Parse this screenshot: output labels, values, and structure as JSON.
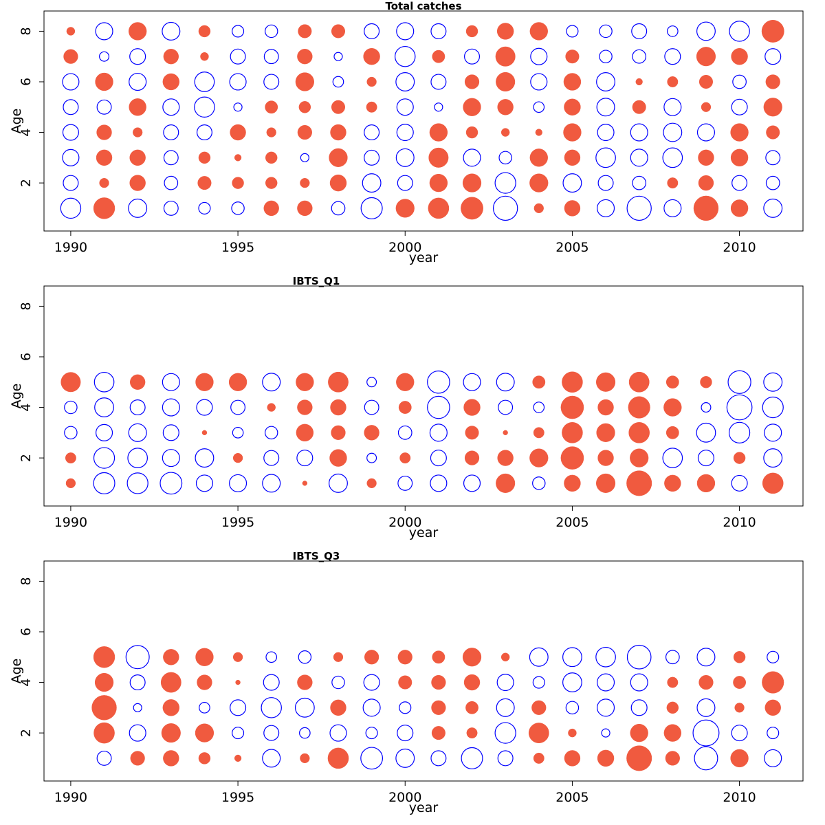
{
  "chart_data": [
    {
      "type": "scatter",
      "subtype": "bubble",
      "title": "Total catches",
      "xlabel": "year",
      "ylabel": "Age",
      "xlim": [
        1989.2,
        2011.9
      ],
      "ylim": [
        0.1,
        8.8
      ],
      "xticks": [
        1990,
        1995,
        2000,
        2005,
        2010
      ],
      "yticks": [
        2,
        4,
        6,
        8
      ],
      "grid": false,
      "colors": {
        "positive": "#f05a3f",
        "negative": "#0000ff"
      },
      "years": [
        1990,
        1991,
        1992,
        1993,
        1994,
        1995,
        1996,
        1997,
        1998,
        1999,
        2000,
        2001,
        2002,
        2003,
        2004,
        2005,
        2006,
        2007,
        2008,
        2009,
        2010,
        2011
      ],
      "ages": [
        1,
        2,
        3,
        4,
        5,
        6,
        7,
        8
      ],
      "values": [
        [
          -0.9,
          1.0,
          -0.75,
          -0.45,
          -0.3,
          -0.35,
          0.5,
          0.5,
          -0.4,
          -1.0,
          0.75,
          0.95,
          1.1,
          -1.3,
          0.2,
          0.55,
          -0.65,
          -1.3,
          -0.65,
          1.35,
          0.65,
          -0.75
        ],
        [
          -0.5,
          0.2,
          0.55,
          -0.4,
          0.4,
          0.3,
          0.3,
          0.2,
          0.6,
          -0.75,
          -0.5,
          0.7,
          0.75,
          -0.95,
          0.75,
          -0.75,
          -0.5,
          -0.4,
          0.25,
          0.5,
          -0.5,
          -0.4
        ],
        [
          -0.6,
          0.55,
          0.55,
          -0.45,
          0.3,
          0.1,
          0.3,
          -0.15,
          0.75,
          -0.5,
          -0.7,
          0.85,
          -0.65,
          -0.35,
          0.7,
          0.55,
          -0.85,
          -0.65,
          -0.85,
          0.55,
          0.65,
          -0.45
        ],
        [
          -0.55,
          0.5,
          0.2,
          -0.5,
          -0.5,
          0.55,
          0.2,
          0.45,
          0.55,
          -0.5,
          -0.6,
          0.7,
          0.3,
          0.15,
          0.1,
          0.7,
          -0.6,
          -0.65,
          -0.75,
          -0.65,
          0.7,
          0.4
        ],
        [
          -0.5,
          -0.45,
          0.65,
          -0.6,
          -0.9,
          -0.15,
          0.35,
          0.3,
          0.4,
          0.25,
          -0.6,
          -0.15,
          0.7,
          0.55,
          -0.25,
          0.6,
          -0.7,
          0.4,
          -0.65,
          0.2,
          -0.55,
          0.75
        ],
        [
          -0.6,
          0.7,
          -0.65,
          0.6,
          -0.85,
          -0.6,
          -0.5,
          0.75,
          -0.25,
          0.2,
          -0.75,
          -0.5,
          0.45,
          0.8,
          -0.6,
          0.65,
          -0.75,
          0.1,
          0.25,
          0.4,
          -0.4,
          0.45
        ],
        [
          0.45,
          -0.2,
          -0.55,
          0.5,
          0.15,
          -0.5,
          -0.45,
          0.5,
          -0.15,
          0.6,
          -0.9,
          0.35,
          -0.5,
          0.85,
          -0.6,
          0.4,
          -0.35,
          -0.4,
          -0.55,
          0.8,
          0.6,
          -0.55
        ],
        [
          0.15,
          -0.65,
          0.7,
          -0.7,
          0.3,
          -0.3,
          -0.35,
          0.4,
          0.4,
          -0.5,
          -0.65,
          -0.5,
          0.3,
          0.6,
          0.7,
          -0.3,
          -0.35,
          -0.5,
          -0.25,
          -0.75,
          -0.9,
          1.1
        ]
      ]
    },
    {
      "type": "scatter",
      "subtype": "bubble",
      "title": "IBTS_Q1",
      "xlabel": "year",
      "ylabel": "Age",
      "xlim": [
        1989.2,
        2011.9
      ],
      "ylim": [
        0.1,
        8.8
      ],
      "xticks": [
        1990,
        1995,
        2000,
        2005,
        2010
      ],
      "yticks": [
        2,
        4,
        6,
        8
      ],
      "grid": false,
      "colors": {
        "positive": "#f05a3f",
        "negative": "#0000ff"
      },
      "years": [
        1990,
        1991,
        1992,
        1993,
        1994,
        1995,
        1996,
        1997,
        1998,
        1999,
        2000,
        2001,
        2002,
        2003,
        2004,
        2005,
        2006,
        2007,
        2008,
        2009,
        2010,
        2011
      ],
      "ages": [
        1,
        2,
        3,
        4,
        5
      ],
      "values": [
        [
          0.2,
          -1.0,
          -0.95,
          -1.05,
          -0.6,
          -0.65,
          -0.7,
          0.05,
          -0.75,
          0.2,
          -0.45,
          -0.6,
          -0.6,
          0.8,
          -0.35,
          0.6,
          0.8,
          1.4,
          0.6,
          0.7,
          -0.55,
          0.95
        ],
        [
          0.25,
          -0.95,
          -0.85,
          -0.65,
          -0.75,
          0.2,
          -0.5,
          -0.55,
          0.65,
          -0.2,
          0.25,
          -0.55,
          0.45,
          0.55,
          0.75,
          1.15,
          0.55,
          0.75,
          -0.85,
          -0.55,
          0.3,
          -0.75
        ],
        [
          -0.35,
          -0.6,
          -0.7,
          -0.55,
          0.05,
          -0.25,
          -0.35,
          0.65,
          0.45,
          0.5,
          -0.4,
          -0.65,
          0.4,
          0.05,
          0.25,
          0.95,
          0.75,
          0.95,
          0.35,
          -0.8,
          -0.95,
          -0.65
        ],
        [
          -0.35,
          -0.8,
          -0.5,
          -0.65,
          -0.55,
          -0.45,
          0.15,
          0.5,
          0.55,
          -0.45,
          0.35,
          -1.1,
          0.6,
          -0.45,
          -0.25,
          1.15,
          0.55,
          1.05,
          0.7,
          -0.2,
          -1.4,
          -0.95
        ],
        [
          0.85,
          -0.85,
          0.5,
          -0.65,
          0.7,
          0.7,
          -0.7,
          0.7,
          0.9,
          -0.2,
          0.7,
          -1.1,
          -0.65,
          -0.7,
          0.35,
          0.95,
          0.8,
          0.9,
          0.35,
          0.3,
          -1.15,
          -0.75
        ]
      ]
    },
    {
      "type": "scatter",
      "subtype": "bubble",
      "title": "IBTS_Q3",
      "xlabel": "year",
      "ylabel": "Age",
      "xlim": [
        1989.2,
        2011.9
      ],
      "ylim": [
        0.1,
        8.8
      ],
      "xticks": [
        1990,
        1995,
        2000,
        2005,
        2010
      ],
      "yticks": [
        2,
        4,
        6,
        8
      ],
      "grid": false,
      "colors": {
        "positive": "#f05a3f",
        "negative": "#0000ff"
      },
      "years": [
        1991,
        1992,
        1993,
        1994,
        1995,
        1996,
        1997,
        1998,
        1999,
        2000,
        2001,
        2002,
        2003,
        2004,
        2005,
        2006,
        2007,
        2008,
        2009,
        2010,
        2011
      ],
      "ages": [
        1,
        2,
        3,
        4,
        5
      ],
      "values": [
        [
          -0.45,
          0.45,
          0.55,
          0.3,
          0.1,
          -0.7,
          0.2,
          0.95,
          -1.05,
          -0.75,
          -0.5,
          -1.0,
          -0.5,
          0.25,
          0.55,
          0.6,
          1.4,
          0.45,
          -1.2,
          0.7,
          -0.65
        ],
        [
          0.95,
          -0.6,
          0.8,
          0.75,
          -0.3,
          -0.5,
          -0.25,
          -0.6,
          -0.3,
          -0.55,
          0.4,
          0.25,
          -0.95,
          0.9,
          0.15,
          -0.15,
          0.7,
          0.65,
          -1.5,
          -0.55,
          -0.3
        ],
        [
          1.35,
          -0.15,
          0.6,
          -0.25,
          -0.55,
          -0.9,
          -0.8,
          0.55,
          -0.65,
          -0.3,
          0.45,
          0.35,
          -0.7,
          0.45,
          -0.35,
          -0.65,
          -0.55,
          0.3,
          -0.7,
          0.2,
          0.55
        ],
        [
          0.75,
          -0.5,
          0.9,
          0.5,
          0.05,
          -0.55,
          0.5,
          -0.35,
          -0.55,
          0.4,
          0.45,
          0.55,
          -0.6,
          -0.3,
          -0.8,
          -0.65,
          -0.65,
          0.25,
          0.45,
          0.35,
          1.05
        ],
        [
          1.0,
          -1.2,
          0.55,
          0.7,
          0.2,
          -0.25,
          -0.35,
          0.2,
          0.45,
          0.45,
          0.35,
          0.75,
          0.15,
          -0.75,
          -0.8,
          -0.85,
          -1.25,
          -0.4,
          -0.7,
          0.3,
          -0.3
        ]
      ]
    }
  ]
}
